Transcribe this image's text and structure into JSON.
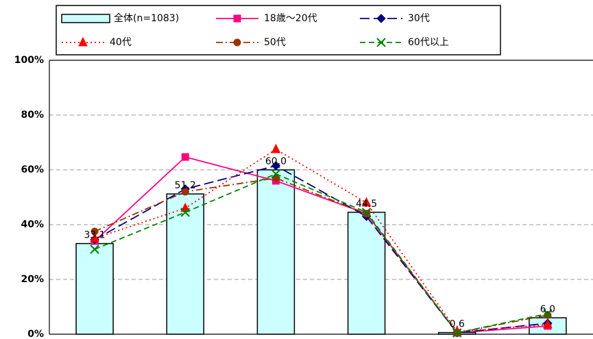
{
  "chart_data": {
    "type": "bar-line",
    "categories": [
      null,
      null,
      null,
      null,
      null,
      null
    ],
    "ylim": [
      0,
      100
    ],
    "yticks": [
      {
        "value": 0,
        "label": "0%"
      },
      {
        "value": 20,
        "label": "20%"
      },
      {
        "value": 40,
        "label": "40%"
      },
      {
        "value": 60,
        "label": "60%"
      },
      {
        "value": 80,
        "label": "80%"
      },
      {
        "value": 100,
        "label": "100%"
      }
    ],
    "grid": true,
    "series": [
      {
        "name": "全体(n=1083)",
        "kind": "bar",
        "color": "#ccffff",
        "values": [
          33.1,
          51.2,
          60.0,
          44.5,
          0.6,
          6.0
        ],
        "value_labels": [
          "33.1",
          "51.2",
          "60.0",
          "44.5",
          "0.6",
          "6.0"
        ]
      },
      {
        "name": "18歳～20代",
        "kind": "line",
        "marker": "square",
        "dash": "solid",
        "color": "#ff0080",
        "values": [
          34,
          64.7,
          56,
          44,
          0.5,
          3
        ]
      },
      {
        "name": "30代",
        "kind": "line",
        "marker": "diamond",
        "dash": "long",
        "color": "#000080",
        "values": [
          34.5,
          53,
          61.5,
          43,
          0.5,
          4
        ]
      },
      {
        "name": "40代",
        "kind": "line",
        "marker": "triangle",
        "dash": "dot",
        "color": "#ff0000",
        "values": [
          35,
          46,
          67.5,
          48,
          1,
          3.5
        ]
      },
      {
        "name": "50代",
        "kind": "line",
        "marker": "circle",
        "dash": "dashdot",
        "color": "#993300",
        "values": [
          37.5,
          52,
          57,
          44,
          0.5,
          7
        ]
      },
      {
        "name": "60代以上",
        "kind": "line",
        "marker": "x",
        "dash": "dash",
        "color": "#008000",
        "values": [
          31,
          44.5,
          58.5,
          44.5,
          0.5,
          7.5
        ]
      }
    ]
  }
}
